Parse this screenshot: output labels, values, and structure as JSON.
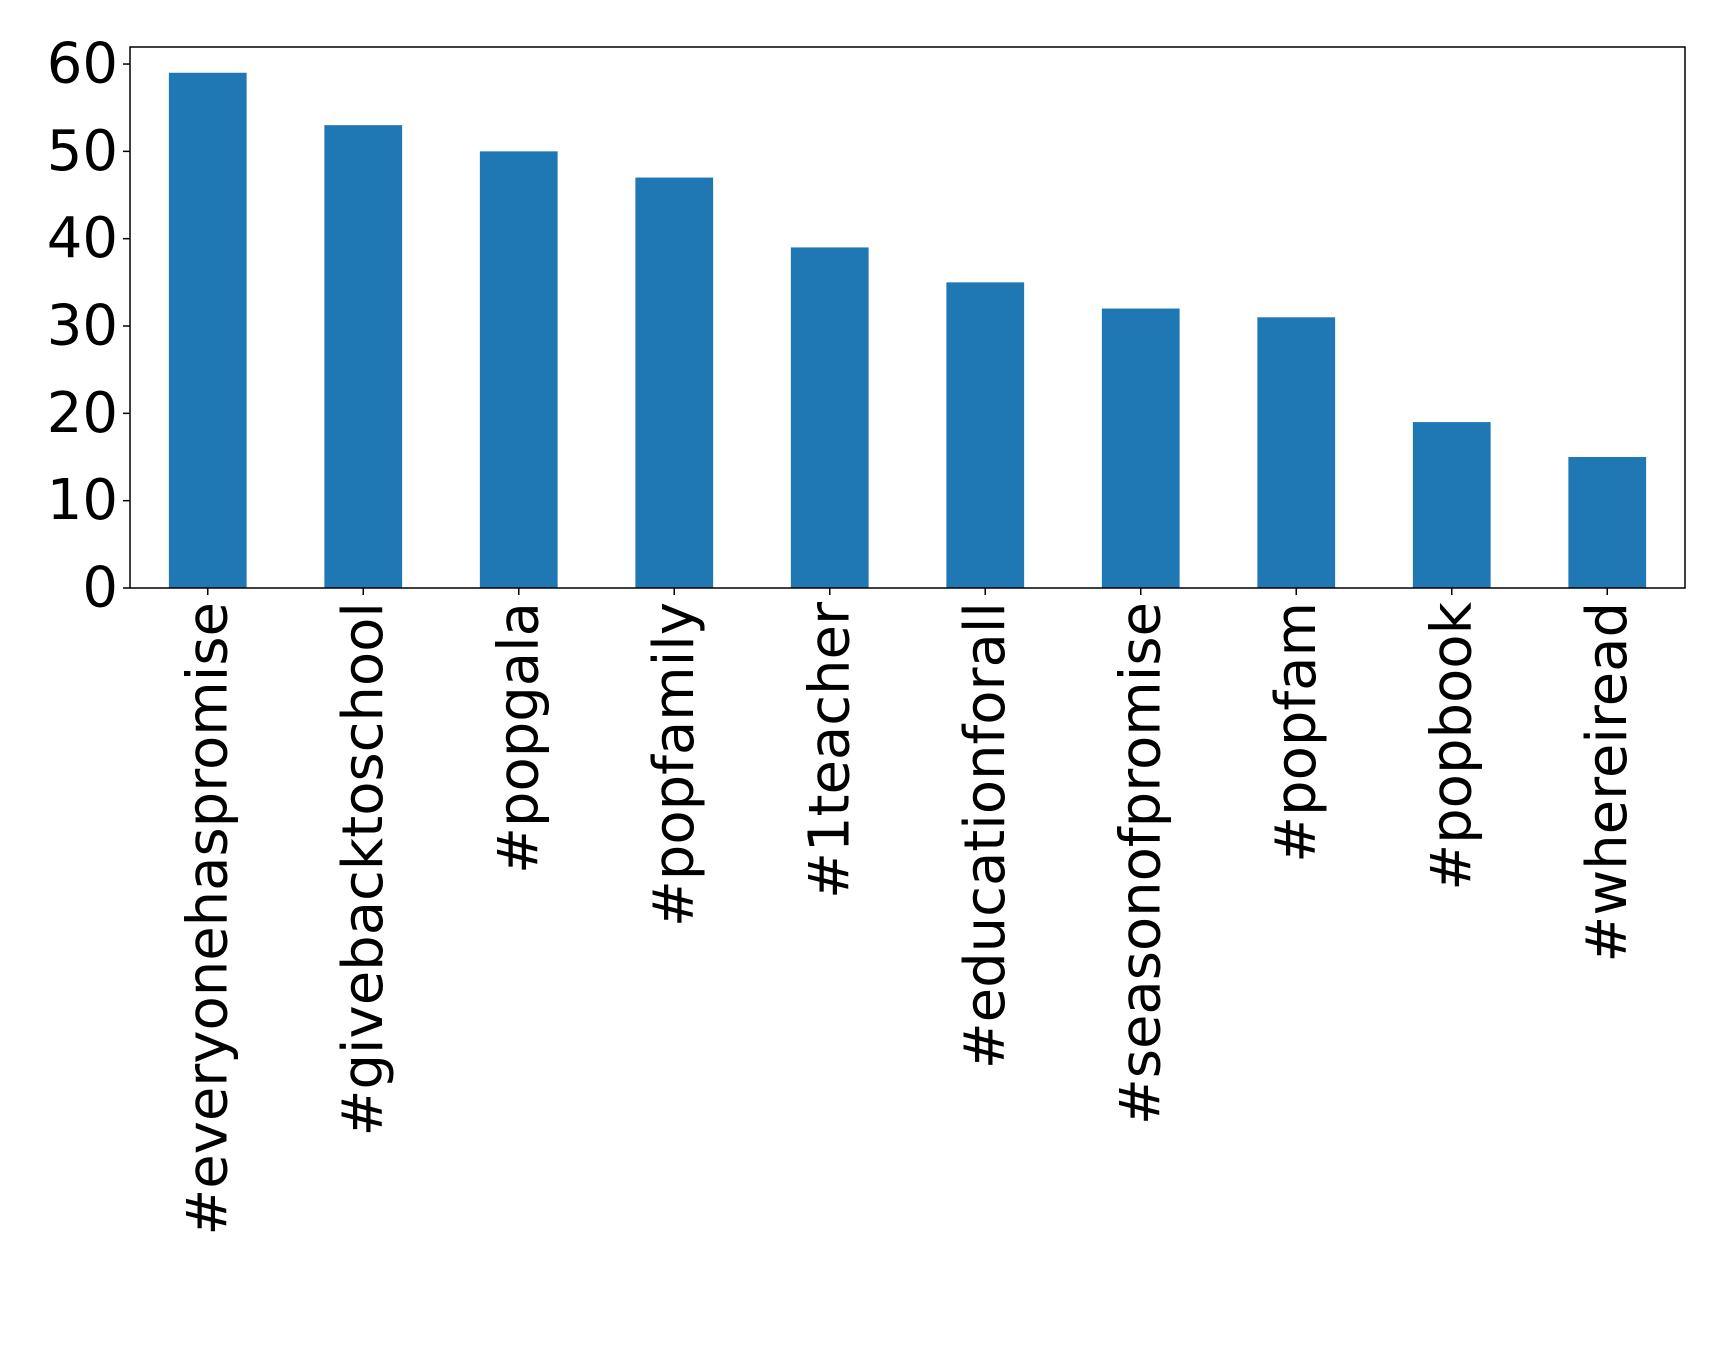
{
  "chart_data": {
    "type": "bar",
    "title": "",
    "xlabel": "",
    "ylabel": "",
    "categories": [
      "#everyonehaspromise",
      "#givebacktoschool",
      "#popgala",
      "#popfamily",
      "#1teacher",
      "#educationforall",
      "#seasonofpromise",
      "#popfam",
      "#popbook",
      "#whereiread"
    ],
    "values": [
      59,
      53,
      50,
      47,
      39,
      35,
      32,
      31,
      19,
      15
    ],
    "ylim": [
      0,
      61.95
    ],
    "yticks": [
      0,
      10,
      20,
      30,
      40,
      50,
      60
    ],
    "grid": false,
    "legend": "none",
    "bar_color": "#1f77b4"
  }
}
